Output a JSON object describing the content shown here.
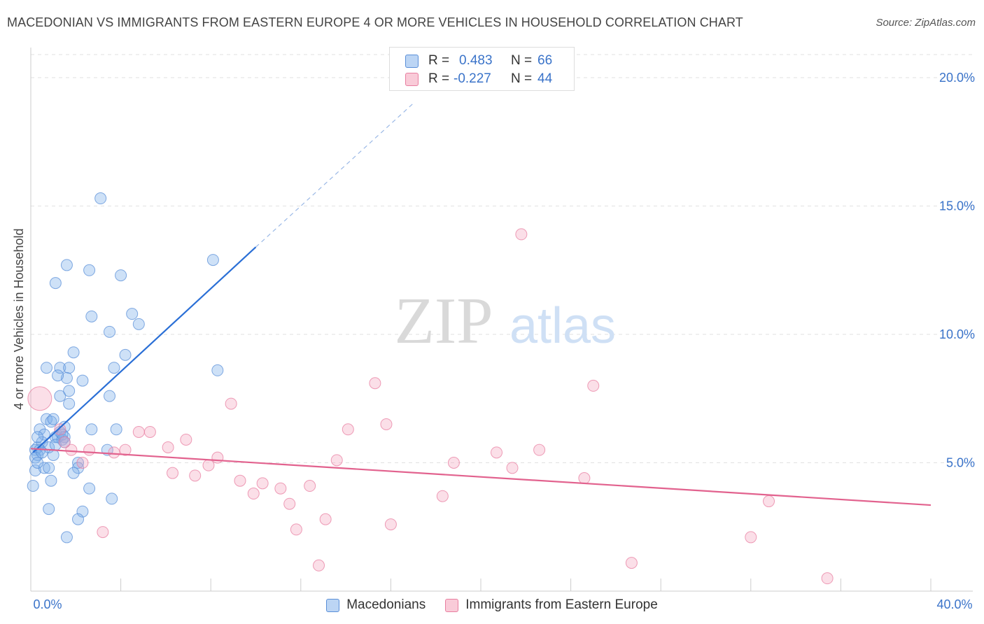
{
  "title": "MACEDONIAN VS IMMIGRANTS FROM EASTERN EUROPE 4 OR MORE VEHICLES IN HOUSEHOLD CORRELATION CHART",
  "source": "Source: ZipAtlas.com",
  "watermark": {
    "zip": "ZIP",
    "atlas": "atlas"
  },
  "legend_top": [
    {
      "r_label": "R =",
      "r_value": "0.483",
      "n_label": "N =",
      "n_value": "66",
      "color": "#a9c8f0",
      "border": "#5a8fd8"
    },
    {
      "r_label": "R =",
      "r_value": "-0.227",
      "n_label": "N =",
      "n_value": "44",
      "color": "#f7bccd",
      "border": "#e87ea0"
    }
  ],
  "bottom_legend": [
    {
      "label": "Macedonians",
      "color": "#a9c8f0",
      "border": "#5a8fd8"
    },
    {
      "label": "Immigrants from Eastern Europe",
      "color": "#f7bccd",
      "border": "#e87ea0"
    }
  ],
  "chart_data": {
    "type": "scatter",
    "title": "MACEDONIAN VS IMMIGRANTS FROM EASTERN EUROPE 4 OR MORE VEHICLES IN HOUSEHOLD CORRELATION CHART",
    "xlabel": "",
    "ylabel": "4 or more Vehicles in Household",
    "xlim": [
      0,
      40
    ],
    "ylim": [
      0,
      20.9
    ],
    "x_tick_labels": [
      {
        "value": 0,
        "label": "0.0%"
      },
      {
        "value": 40,
        "label": "40.0%"
      }
    ],
    "y_tick_labels": [
      {
        "value": 5,
        "label": "5.0%"
      },
      {
        "value": 10,
        "label": "10.0%"
      },
      {
        "value": 15,
        "label": "15.0%"
      },
      {
        "value": 20,
        "label": "20.0%"
      }
    ],
    "grid": true,
    "series": [
      {
        "name": "Macedonians",
        "color": "#7fb0ea",
        "edge": "#5a8fd8",
        "trend": {
          "x0": 0.1,
          "y0": 5.4,
          "x1": 10.0,
          "y1": 13.4,
          "dash_to_x": 17.0,
          "dash_to_y": 19.0
        },
        "points": [
          [
            3.1,
            15.3
          ],
          [
            1.6,
            12.7
          ],
          [
            2.6,
            12.5
          ],
          [
            4.0,
            12.3
          ],
          [
            1.1,
            12.0
          ],
          [
            8.1,
            12.9
          ],
          [
            2.7,
            10.7
          ],
          [
            4.5,
            10.8
          ],
          [
            3.5,
            10.1
          ],
          [
            4.8,
            10.4
          ],
          [
            0.7,
            8.7
          ],
          [
            1.3,
            8.7
          ],
          [
            1.7,
            8.7
          ],
          [
            1.9,
            9.3
          ],
          [
            1.6,
            8.3
          ],
          [
            1.2,
            8.4
          ],
          [
            2.3,
            8.2
          ],
          [
            3.7,
            8.7
          ],
          [
            4.2,
            9.2
          ],
          [
            8.3,
            8.6
          ],
          [
            1.3,
            7.6
          ],
          [
            1.7,
            7.8
          ],
          [
            3.5,
            7.6
          ],
          [
            1.7,
            7.3
          ],
          [
            0.7,
            6.7
          ],
          [
            0.9,
            6.6
          ],
          [
            0.4,
            6.3
          ],
          [
            0.6,
            6.1
          ],
          [
            1.1,
            6.0
          ],
          [
            1.3,
            6.2
          ],
          [
            1.5,
            6.4
          ],
          [
            1.2,
            6.0
          ],
          [
            1.5,
            6.0
          ],
          [
            1.4,
            5.9
          ],
          [
            2.7,
            6.3
          ],
          [
            3.8,
            6.3
          ],
          [
            0.3,
            5.6
          ],
          [
            0.5,
            5.8
          ],
          [
            0.8,
            5.6
          ],
          [
            0.2,
            5.5
          ],
          [
            0.4,
            5.5
          ],
          [
            1.1,
            5.7
          ],
          [
            0.3,
            5.3
          ],
          [
            1.0,
            5.3
          ],
          [
            0.2,
            5.2
          ],
          [
            3.4,
            5.5
          ],
          [
            0.2,
            4.7
          ],
          [
            0.6,
            4.8
          ],
          [
            0.8,
            4.8
          ],
          [
            2.1,
            5.0
          ],
          [
            2.1,
            4.8
          ],
          [
            1.9,
            4.6
          ],
          [
            0.9,
            4.3
          ],
          [
            0.1,
            4.1
          ],
          [
            2.6,
            4.0
          ],
          [
            3.6,
            3.6
          ],
          [
            0.8,
            3.2
          ],
          [
            2.3,
            3.1
          ],
          [
            2.1,
            2.8
          ],
          [
            1.6,
            2.1
          ],
          [
            0.3,
            5.0
          ],
          [
            1.4,
            6.1
          ],
          [
            0.5,
            5.4
          ],
          [
            1.0,
            6.7
          ],
          [
            1.5,
            5.8
          ],
          [
            0.3,
            6.0
          ]
        ]
      },
      {
        "name": "Immigrants from Eastern Europe",
        "color": "#f4a4bd",
        "edge": "#e87ea0",
        "trend": {
          "x0": 0.0,
          "y0": 5.55,
          "x1": 40.0,
          "y1": 3.35
        },
        "points": [
          [
            0.4,
            7.5,
            "big"
          ],
          [
            21.8,
            13.9
          ],
          [
            15.3,
            8.1
          ],
          [
            25.0,
            8.0
          ],
          [
            8.9,
            7.3
          ],
          [
            1.3,
            6.3
          ],
          [
            14.1,
            6.3
          ],
          [
            15.8,
            6.5
          ],
          [
            4.8,
            6.2
          ],
          [
            5.3,
            6.2
          ],
          [
            6.9,
            5.9
          ],
          [
            6.1,
            5.6
          ],
          [
            2.6,
            5.5
          ],
          [
            3.7,
            5.4
          ],
          [
            4.2,
            5.5
          ],
          [
            1.8,
            5.5
          ],
          [
            20.7,
            5.4
          ],
          [
            22.6,
            5.5
          ],
          [
            8.3,
            5.2
          ],
          [
            2.3,
            5.0
          ],
          [
            13.6,
            5.1
          ],
          [
            18.8,
            5.0
          ],
          [
            7.9,
            4.9
          ],
          [
            21.4,
            4.8
          ],
          [
            6.3,
            4.6
          ],
          [
            7.3,
            4.5
          ],
          [
            9.3,
            4.3
          ],
          [
            10.3,
            4.2
          ],
          [
            24.6,
            4.4
          ],
          [
            11.1,
            4.0
          ],
          [
            12.4,
            4.1
          ],
          [
            9.9,
            3.8
          ],
          [
            18.3,
            3.7
          ],
          [
            11.5,
            3.4
          ],
          [
            32.8,
            3.5
          ],
          [
            13.1,
            2.8
          ],
          [
            16.0,
            2.6
          ],
          [
            11.8,
            2.4
          ],
          [
            3.2,
            2.3
          ],
          [
            32.0,
            2.1
          ],
          [
            12.8,
            1.0
          ],
          [
            26.7,
            1.1
          ],
          [
            35.4,
            0.5
          ],
          [
            1.5,
            5.8
          ]
        ]
      }
    ]
  }
}
